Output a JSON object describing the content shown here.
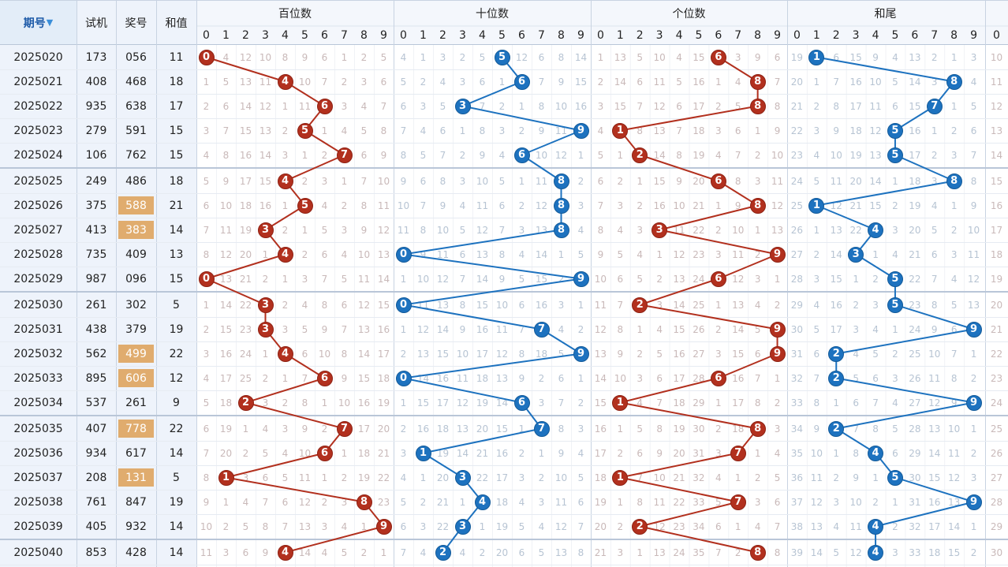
{
  "headers": {
    "period": "期号",
    "period_sort_icon": "sort-desc-icon",
    "test": "试机",
    "prize": "奖号",
    "sum": "和值",
    "groups": [
      "百位数",
      "十位数",
      "个位数",
      "和尾"
    ],
    "digits": [
      "0",
      "1",
      "2",
      "3",
      "4",
      "5",
      "6",
      "7",
      "8",
      "9"
    ]
  },
  "colors": {
    "red": "#b2301e",
    "blue": "#1d72bf",
    "highlight": "#e0ac6e"
  },
  "rows": [
    {
      "period": "2025020",
      "test": "173",
      "prize": "056",
      "sum": "11",
      "hl": false,
      "hundreds": [
        "0",
        "4",
        "12",
        "10",
        "8",
        "9",
        "6",
        "1",
        "2",
        "5"
      ],
      "tens": [
        "4",
        "1",
        "3",
        "2",
        "5",
        "5",
        "12",
        "6",
        "8",
        "14"
      ],
      "units": [
        "1",
        "13",
        "5",
        "10",
        "4",
        "15",
        "6",
        "3",
        "9",
        "6"
      ],
      "tail": [
        "19",
        "1",
        "6",
        "15",
        "9",
        "4",
        "13",
        "2",
        "1",
        "3"
      ],
      "extra": "10"
    },
    {
      "period": "2025021",
      "test": "408",
      "prize": "468",
      "sum": "18",
      "hl": false,
      "hundreds": [
        "1",
        "5",
        "13",
        "11",
        "4",
        "10",
        "7",
        "2",
        "3",
        "6"
      ],
      "tens": [
        "5",
        "2",
        "4",
        "3",
        "6",
        "1",
        "6",
        "7",
        "9",
        "15"
      ],
      "units": [
        "2",
        "14",
        "6",
        "11",
        "5",
        "16",
        "1",
        "4",
        "8",
        "7"
      ],
      "tail": [
        "20",
        "1",
        "7",
        "16",
        "10",
        "5",
        "14",
        "3",
        "8",
        "4"
      ],
      "extra": "11"
    },
    {
      "period": "2025022",
      "test": "935",
      "prize": "638",
      "sum": "17",
      "hl": false,
      "hundreds": [
        "2",
        "6",
        "14",
        "12",
        "1",
        "11",
        "6",
        "3",
        "4",
        "7"
      ],
      "tens": [
        "6",
        "3",
        "5",
        "3",
        "7",
        "2",
        "1",
        "8",
        "10",
        "16"
      ],
      "units": [
        "3",
        "15",
        "7",
        "12",
        "6",
        "17",
        "2",
        "5",
        "8",
        "8"
      ],
      "tail": [
        "21",
        "2",
        "8",
        "17",
        "11",
        "6",
        "15",
        "7",
        "1",
        "5"
      ],
      "extra": "12"
    },
    {
      "period": "2025023",
      "test": "279",
      "prize": "591",
      "sum": "15",
      "hl": false,
      "hundreds": [
        "3",
        "7",
        "15",
        "13",
        "2",
        "5",
        "1",
        "4",
        "5",
        "8"
      ],
      "tens": [
        "7",
        "4",
        "6",
        "1",
        "8",
        "3",
        "2",
        "9",
        "11",
        "9"
      ],
      "units": [
        "4",
        "1",
        "8",
        "13",
        "7",
        "18",
        "3",
        "6",
        "1",
        "9"
      ],
      "tail": [
        "22",
        "3",
        "9",
        "18",
        "12",
        "5",
        "16",
        "1",
        "2",
        "6"
      ],
      "extra": "13"
    },
    {
      "period": "2025024",
      "test": "106",
      "prize": "762",
      "sum": "15",
      "hl": false,
      "hundreds": [
        "4",
        "8",
        "16",
        "14",
        "3",
        "1",
        "2",
        "7",
        "6",
        "9"
      ],
      "tens": [
        "8",
        "5",
        "7",
        "2",
        "9",
        "4",
        "6",
        "10",
        "12",
        "1"
      ],
      "units": [
        "5",
        "1",
        "2",
        "14",
        "8",
        "19",
        "4",
        "7",
        "2",
        "10"
      ],
      "tail": [
        "23",
        "4",
        "10",
        "19",
        "13",
        "5",
        "17",
        "2",
        "3",
        "7"
      ],
      "extra": "14"
    },
    {
      "period": "2025025",
      "test": "249",
      "prize": "486",
      "sum": "18",
      "hl": false,
      "hundreds": [
        "5",
        "9",
        "17",
        "15",
        "4",
        "2",
        "3",
        "1",
        "7",
        "10"
      ],
      "tens": [
        "9",
        "6",
        "8",
        "3",
        "10",
        "5",
        "1",
        "11",
        "8",
        "2"
      ],
      "units": [
        "6",
        "2",
        "1",
        "15",
        "9",
        "20",
        "6",
        "8",
        "3",
        "11"
      ],
      "tail": [
        "24",
        "5",
        "11",
        "20",
        "14",
        "1",
        "18",
        "3",
        "8",
        "8"
      ],
      "extra": "15"
    },
    {
      "period": "2025026",
      "test": "375",
      "prize": "588",
      "sum": "21",
      "hl": true,
      "hundreds": [
        "6",
        "10",
        "18",
        "16",
        "1",
        "5",
        "4",
        "2",
        "8",
        "11"
      ],
      "tens": [
        "10",
        "7",
        "9",
        "4",
        "11",
        "6",
        "2",
        "12",
        "8",
        "3"
      ],
      "units": [
        "7",
        "3",
        "2",
        "16",
        "10",
        "21",
        "1",
        "9",
        "8",
        "12"
      ],
      "tail": [
        "25",
        "1",
        "12",
        "21",
        "15",
        "2",
        "19",
        "4",
        "1",
        "9"
      ],
      "extra": "16"
    },
    {
      "period": "2025027",
      "test": "413",
      "prize": "383",
      "sum": "14",
      "hl": true,
      "hundreds": [
        "7",
        "11",
        "19",
        "3",
        "2",
        "1",
        "5",
        "3",
        "9",
        "12"
      ],
      "tens": [
        "11",
        "8",
        "10",
        "5",
        "12",
        "7",
        "3",
        "13",
        "8",
        "4"
      ],
      "units": [
        "8",
        "4",
        "3",
        "3",
        "11",
        "22",
        "2",
        "10",
        "1",
        "13"
      ],
      "tail": [
        "26",
        "1",
        "13",
        "22",
        "4",
        "3",
        "20",
        "5",
        "2",
        "10"
      ],
      "extra": "17"
    },
    {
      "period": "2025028",
      "test": "735",
      "prize": "409",
      "sum": "13",
      "hl": false,
      "hundreds": [
        "8",
        "12",
        "20",
        "1",
        "4",
        "2",
        "6",
        "4",
        "10",
        "13"
      ],
      "tens": [
        "0",
        "9",
        "11",
        "6",
        "13",
        "8",
        "4",
        "14",
        "1",
        "5"
      ],
      "units": [
        "9",
        "5",
        "4",
        "1",
        "12",
        "23",
        "3",
        "11",
        "2",
        "9"
      ],
      "tail": [
        "27",
        "2",
        "14",
        "3",
        "1",
        "4",
        "21",
        "6",
        "3",
        "11"
      ],
      "extra": "18"
    },
    {
      "period": "2025029",
      "test": "987",
      "prize": "096",
      "sum": "15",
      "hl": false,
      "hundreds": [
        "0",
        "13",
        "21",
        "2",
        "1",
        "3",
        "7",
        "5",
        "11",
        "14"
      ],
      "tens": [
        "1",
        "10",
        "12",
        "7",
        "14",
        "9",
        "5",
        "15",
        "2",
        "9"
      ],
      "units": [
        "10",
        "6",
        "5",
        "2",
        "13",
        "24",
        "6",
        "12",
        "3",
        "1"
      ],
      "tail": [
        "28",
        "3",
        "15",
        "1",
        "2",
        "5",
        "22",
        "7",
        "4",
        "12"
      ],
      "extra": "19"
    },
    {
      "period": "2025030",
      "test": "261",
      "prize": "302",
      "sum": "5",
      "hl": false,
      "hundreds": [
        "1",
        "14",
        "22",
        "3",
        "2",
        "4",
        "8",
        "6",
        "12",
        "15"
      ],
      "tens": [
        "0",
        "11",
        "13",
        "8",
        "15",
        "10",
        "6",
        "16",
        "3",
        "1"
      ],
      "units": [
        "11",
        "7",
        "2",
        "3",
        "14",
        "25",
        "1",
        "13",
        "4",
        "2"
      ],
      "tail": [
        "29",
        "4",
        "16",
        "2",
        "3",
        "5",
        "23",
        "8",
        "5",
        "13"
      ],
      "extra": "20"
    },
    {
      "period": "2025031",
      "test": "438",
      "prize": "379",
      "sum": "19",
      "hl": false,
      "hundreds": [
        "2",
        "15",
        "23",
        "3",
        "3",
        "5",
        "9",
        "7",
        "13",
        "16"
      ],
      "tens": [
        "1",
        "12",
        "14",
        "9",
        "16",
        "11",
        "7",
        "17",
        "4",
        "2"
      ],
      "units": [
        "12",
        "8",
        "1",
        "4",
        "15",
        "26",
        "2",
        "14",
        "5",
        "9"
      ],
      "tail": [
        "30",
        "5",
        "17",
        "3",
        "4",
        "1",
        "24",
        "9",
        "6",
        "9"
      ],
      "extra": "21"
    },
    {
      "period": "2025032",
      "test": "562",
      "prize": "499",
      "sum": "22",
      "hl": true,
      "hundreds": [
        "3",
        "16",
        "24",
        "1",
        "4",
        "6",
        "10",
        "8",
        "14",
        "17"
      ],
      "tens": [
        "2",
        "13",
        "15",
        "10",
        "17",
        "12",
        "8",
        "18",
        "5",
        "9"
      ],
      "units": [
        "13",
        "9",
        "2",
        "5",
        "16",
        "27",
        "3",
        "15",
        "6",
        "9"
      ],
      "tail": [
        "31",
        "6",
        "2",
        "4",
        "5",
        "2",
        "25",
        "10",
        "7",
        "1"
      ],
      "extra": "22"
    },
    {
      "period": "2025033",
      "test": "895",
      "prize": "606",
      "sum": "12",
      "hl": true,
      "hundreds": [
        "4",
        "17",
        "25",
        "2",
        "1",
        "7",
        "6",
        "9",
        "15",
        "18"
      ],
      "tens": [
        "0",
        "14",
        "16",
        "11",
        "18",
        "13",
        "9",
        "2",
        "6",
        "1"
      ],
      "units": [
        "14",
        "10",
        "3",
        "6",
        "17",
        "28",
        "6",
        "16",
        "7",
        "1"
      ],
      "tail": [
        "32",
        "7",
        "2",
        "5",
        "6",
        "3",
        "26",
        "11",
        "8",
        "2"
      ],
      "extra": "23"
    },
    {
      "period": "2025034",
      "test": "537",
      "prize": "261",
      "sum": "9",
      "hl": false,
      "hundreds": [
        "5",
        "18",
        "2",
        "3",
        "2",
        "8",
        "1",
        "10",
        "16",
        "19"
      ],
      "tens": [
        "1",
        "15",
        "17",
        "12",
        "19",
        "14",
        "6",
        "3",
        "7",
        "2"
      ],
      "units": [
        "15",
        "1",
        "4",
        "7",
        "18",
        "29",
        "1",
        "17",
        "8",
        "2"
      ],
      "tail": [
        "33",
        "8",
        "1",
        "6",
        "7",
        "4",
        "27",
        "12",
        "9",
        "9"
      ],
      "extra": "24"
    },
    {
      "period": "2025035",
      "test": "407",
      "prize": "778",
      "sum": "22",
      "hl": true,
      "hundreds": [
        "6",
        "19",
        "1",
        "4",
        "3",
        "9",
        "2",
        "7",
        "17",
        "20"
      ],
      "tens": [
        "2",
        "16",
        "18",
        "13",
        "20",
        "15",
        "1",
        "7",
        "8",
        "3"
      ],
      "units": [
        "16",
        "1",
        "5",
        "8",
        "19",
        "30",
        "2",
        "18",
        "8",
        "3"
      ],
      "tail": [
        "34",
        "9",
        "2",
        "7",
        "8",
        "5",
        "28",
        "13",
        "10",
        "1"
      ],
      "extra": "25"
    },
    {
      "period": "2025036",
      "test": "934",
      "prize": "617",
      "sum": "14",
      "hl": false,
      "hundreds": [
        "7",
        "20",
        "2",
        "5",
        "4",
        "10",
        "6",
        "1",
        "18",
        "21"
      ],
      "tens": [
        "3",
        "1",
        "19",
        "14",
        "21",
        "16",
        "2",
        "1",
        "9",
        "4"
      ],
      "units": [
        "17",
        "2",
        "6",
        "9",
        "20",
        "31",
        "3",
        "7",
        "1",
        "4"
      ],
      "tail": [
        "35",
        "10",
        "1",
        "8",
        "4",
        "6",
        "29",
        "14",
        "11",
        "2"
      ],
      "extra": "26"
    },
    {
      "period": "2025037",
      "test": "208",
      "prize": "131",
      "sum": "5",
      "hl": true,
      "hundreds": [
        "8",
        "1",
        "3",
        "6",
        "5",
        "11",
        "1",
        "2",
        "19",
        "22"
      ],
      "tens": [
        "4",
        "1",
        "20",
        "3",
        "22",
        "17",
        "3",
        "2",
        "10",
        "5"
      ],
      "units": [
        "18",
        "1",
        "7",
        "10",
        "21",
        "32",
        "4",
        "1",
        "2",
        "5"
      ],
      "tail": [
        "36",
        "11",
        "2",
        "9",
        "1",
        "5",
        "30",
        "15",
        "12",
        "3"
      ],
      "extra": "27"
    },
    {
      "period": "2025038",
      "test": "761",
      "prize": "847",
      "sum": "19",
      "hl": false,
      "hundreds": [
        "9",
        "1",
        "4",
        "7",
        "6",
        "12",
        "2",
        "3",
        "8",
        "23"
      ],
      "tens": [
        "5",
        "2",
        "21",
        "1",
        "4",
        "18",
        "4",
        "3",
        "11",
        "6"
      ],
      "units": [
        "19",
        "1",
        "8",
        "11",
        "22",
        "33",
        "5",
        "7",
        "3",
        "6"
      ],
      "tail": [
        "37",
        "12",
        "3",
        "10",
        "2",
        "1",
        "31",
        "16",
        "13",
        "9"
      ],
      "extra": "28"
    },
    {
      "period": "2025039",
      "test": "405",
      "prize": "932",
      "sum": "14",
      "hl": false,
      "hundreds": [
        "10",
        "2",
        "5",
        "8",
        "7",
        "13",
        "3",
        "4",
        "1",
        "9"
      ],
      "tens": [
        "6",
        "3",
        "22",
        "3",
        "1",
        "19",
        "5",
        "4",
        "12",
        "7"
      ],
      "units": [
        "20",
        "2",
        "2",
        "12",
        "23",
        "34",
        "6",
        "1",
        "4",
        "7"
      ],
      "tail": [
        "38",
        "13",
        "4",
        "11",
        "4",
        "2",
        "32",
        "17",
        "14",
        "1"
      ],
      "extra": "29"
    },
    {
      "period": "2025040",
      "test": "853",
      "prize": "428",
      "sum": "14",
      "hl": false,
      "hundreds": [
        "11",
        "3",
        "6",
        "9",
        "4",
        "14",
        "4",
        "5",
        "2",
        "1"
      ],
      "tens": [
        "7",
        "4",
        "2",
        "4",
        "2",
        "20",
        "6",
        "5",
        "13",
        "8"
      ],
      "units": [
        "21",
        "3",
        "1",
        "13",
        "24",
        "35",
        "7",
        "2",
        "8",
        "8"
      ],
      "tail": [
        "39",
        "14",
        "5",
        "12",
        "4",
        "3",
        "33",
        "18",
        "15",
        "2"
      ],
      "extra": "30"
    }
  ]
}
